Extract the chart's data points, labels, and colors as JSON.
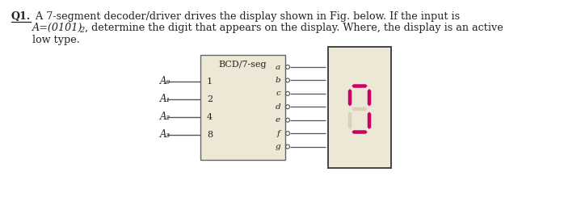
{
  "background_color": "#f0ece0",
  "page_bg": "#ffffff",
  "question_prefix": "Q1.",
  "question_line1": " A 7-segment decoder/driver drives the display shown in Fig. below. If the input is",
  "question_line2_italic": "A=(0101)",
  "question_line2_sub": "2",
  "question_line2_rest": ", determine the digit that appears on the display. Where, the display is an active",
  "question_line3": "low type.",
  "block_label": "BCD/7-seg",
  "block_bg": "#ede8d5",
  "block_border": "#666666",
  "input_labels": [
    "A₀",
    "A₁",
    "A₂",
    "A₃"
  ],
  "input_weights": [
    "1",
    "2",
    "4",
    "8"
  ],
  "output_labels": [
    "a",
    "b",
    "c",
    "d",
    "e",
    "f",
    "g"
  ],
  "display_bg": "#ede8d5",
  "display_border": "#444444",
  "segment_color_on": "#cc0066",
  "segment_color_off": "#d8d0bc",
  "segments_on": [
    true,
    true,
    true,
    true,
    false,
    true,
    false
  ],
  "wire_color": "#555555",
  "text_color": "#222222"
}
